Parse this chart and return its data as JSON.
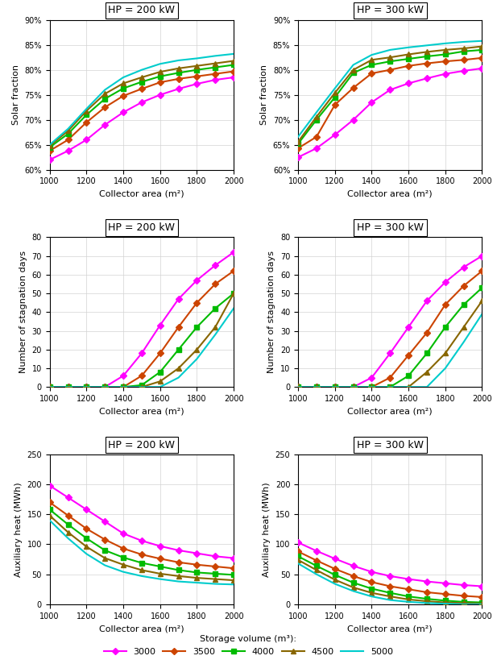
{
  "x": [
    1000,
    1100,
    1200,
    1300,
    1400,
    1500,
    1600,
    1700,
    1800,
    1900,
    2000
  ],
  "legend_labels": [
    "3000",
    "3500",
    "4000",
    "4500",
    "5000"
  ],
  "solar_fraction_200": {
    "3000": [
      0.62,
      0.638,
      0.66,
      0.69,
      0.715,
      0.735,
      0.75,
      0.762,
      0.772,
      0.78,
      0.785
    ],
    "3500": [
      0.638,
      0.66,
      0.695,
      0.725,
      0.748,
      0.762,
      0.775,
      0.782,
      0.787,
      0.792,
      0.797
    ],
    "4000": [
      0.645,
      0.672,
      0.71,
      0.742,
      0.763,
      0.776,
      0.787,
      0.794,
      0.8,
      0.805,
      0.81
    ],
    "4500": [
      0.648,
      0.678,
      0.718,
      0.752,
      0.773,
      0.785,
      0.796,
      0.803,
      0.808,
      0.813,
      0.818
    ],
    "5000": [
      0.65,
      0.682,
      0.722,
      0.76,
      0.785,
      0.8,
      0.812,
      0.819,
      0.823,
      0.828,
      0.832
    ]
  },
  "solar_fraction_300": {
    "3000": [
      0.625,
      0.643,
      0.67,
      0.7,
      0.735,
      0.76,
      0.773,
      0.783,
      0.792,
      0.798,
      0.803
    ],
    "3500": [
      0.643,
      0.666,
      0.73,
      0.764,
      0.793,
      0.8,
      0.808,
      0.813,
      0.817,
      0.82,
      0.824
    ],
    "4000": [
      0.652,
      0.7,
      0.745,
      0.794,
      0.81,
      0.817,
      0.822,
      0.827,
      0.831,
      0.837,
      0.84
    ],
    "4500": [
      0.656,
      0.706,
      0.754,
      0.8,
      0.82,
      0.825,
      0.831,
      0.836,
      0.84,
      0.843,
      0.847
    ],
    "5000": [
      0.666,
      0.715,
      0.763,
      0.81,
      0.83,
      0.84,
      0.845,
      0.849,
      0.853,
      0.856,
      0.858
    ]
  },
  "stagnation_200": {
    "3000": [
      0,
      0,
      0,
      0,
      6,
      18,
      33,
      47,
      57,
      65,
      72
    ],
    "3500": [
      0,
      0,
      0,
      0,
      0,
      6,
      18,
      32,
      45,
      55,
      62
    ],
    "4000": [
      0,
      0,
      0,
      0,
      0,
      1,
      8,
      20,
      32,
      42,
      50
    ],
    "4500": [
      0,
      0,
      0,
      0,
      0,
      0,
      3,
      10,
      20,
      32,
      50
    ],
    "5000": [
      0,
      0,
      0,
      0,
      0,
      0,
      0,
      5,
      15,
      28,
      42
    ]
  },
  "stagnation_300": {
    "3000": [
      0,
      0,
      0,
      0,
      5,
      18,
      32,
      46,
      56,
      64,
      70
    ],
    "3500": [
      0,
      0,
      0,
      0,
      0,
      5,
      17,
      29,
      44,
      54,
      62
    ],
    "4000": [
      0,
      0,
      0,
      0,
      0,
      0,
      6,
      18,
      32,
      44,
      53
    ],
    "4500": [
      0,
      0,
      0,
      0,
      0,
      0,
      0,
      8,
      18,
      32,
      46
    ],
    "5000": [
      0,
      0,
      0,
      0,
      0,
      0,
      0,
      0,
      10,
      24,
      39
    ]
  },
  "auxiliary_200": {
    "3000": [
      198,
      178,
      158,
      138,
      118,
      106,
      97,
      90,
      85,
      80,
      77
    ],
    "3500": [
      170,
      148,
      126,
      108,
      93,
      83,
      76,
      70,
      66,
      63,
      60
    ],
    "4000": [
      158,
      133,
      110,
      90,
      78,
      69,
      63,
      57,
      53,
      51,
      49
    ],
    "4500": [
      148,
      120,
      96,
      77,
      66,
      57,
      51,
      47,
      44,
      42,
      40
    ],
    "5000": [
      140,
      110,
      84,
      65,
      54,
      47,
      42,
      38,
      36,
      34,
      33
    ]
  },
  "auxiliary_300": {
    "3000": [
      103,
      89,
      76,
      64,
      54,
      47,
      42,
      38,
      35,
      32,
      30
    ],
    "3500": [
      88,
      73,
      59,
      47,
      37,
      30,
      25,
      20,
      17,
      14,
      12
    ],
    "4000": [
      80,
      64,
      49,
      36,
      26,
      19,
      13,
      9,
      6,
      4,
      3
    ],
    "4500": [
      74,
      57,
      41,
      28,
      19,
      13,
      8,
      5,
      3,
      2,
      1
    ],
    "5000": [
      68,
      50,
      34,
      22,
      13,
      7,
      4,
      2,
      1,
      0,
      0
    ]
  },
  "subplot_titles": [
    "HP = 200 kW",
    "HP = 300 kW"
  ],
  "ylabels": [
    "Solar fraction",
    "Number of stagnation days",
    "Auxiliary heat (MWh)"
  ],
  "xlabel": "Collector area (m²)",
  "yticks_sf": [
    0.6,
    0.65,
    0.7,
    0.75,
    0.8,
    0.85,
    0.9
  ],
  "yticks_stag": [
    0,
    10,
    20,
    30,
    40,
    50,
    60,
    70,
    80
  ],
  "yticks_aux": [
    0,
    50,
    100,
    150,
    200,
    250
  ],
  "xticks": [
    1000,
    1200,
    1400,
    1600,
    1800,
    2000
  ],
  "legend_title": "Storage volume (m³):",
  "line_colors": [
    "#FF00FF",
    "#CC4400",
    "#00BB00",
    "#886600",
    "#00CCCC"
  ],
  "marker_list": [
    "D",
    "D",
    "s",
    "^",
    "D"
  ],
  "no_marker_vol": "5000",
  "marker_sizes": 4,
  "line_width": 1.5
}
